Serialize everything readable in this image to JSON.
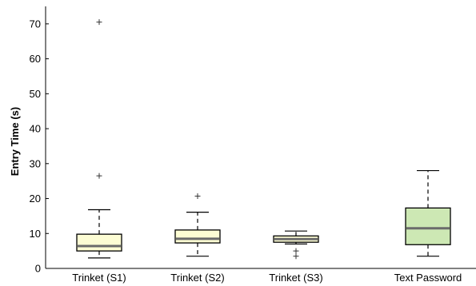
{
  "chart_data": {
    "type": "box",
    "title": "",
    "xlabel": "",
    "ylabel": "Entry Time (s)",
    "ylim": [
      0,
      75
    ],
    "yticks": [
      0,
      10,
      20,
      30,
      40,
      50,
      60,
      70
    ],
    "grid": false,
    "categories": [
      "Trinket (S1)",
      "Trinket (S2)",
      "Trinket (S3)",
      "Text Password"
    ],
    "boxes": [
      {
        "category": "Trinket (S1)",
        "whisker_low": 3.0,
        "q1": 5.0,
        "median": 6.4,
        "q3": 9.8,
        "whisker_high": 16.8,
        "outliers": [
          26.5,
          70.5
        ],
        "color": "#fdfdd4"
      },
      {
        "category": "Trinket (S2)",
        "whisker_low": 3.5,
        "q1": 7.3,
        "median": 8.5,
        "q3": 11.0,
        "whisker_high": 16.1,
        "outliers": [
          20.7
        ],
        "color": "#fdfdd4"
      },
      {
        "category": "Trinket (S3)",
        "whisker_low": 7.0,
        "q1": 7.5,
        "median": 8.4,
        "q3": 9.3,
        "whisker_high": 10.7,
        "outliers": [
          5.0,
          3.5
        ],
        "color": "#fdfdd4"
      },
      {
        "category": "Text Password",
        "whisker_low": 3.5,
        "q1": 6.8,
        "median": 11.5,
        "q3": 17.3,
        "whisker_high": 28.0,
        "outliers": [],
        "color": "#cde8b4"
      }
    ],
    "median_color": "#6b6b6b"
  }
}
